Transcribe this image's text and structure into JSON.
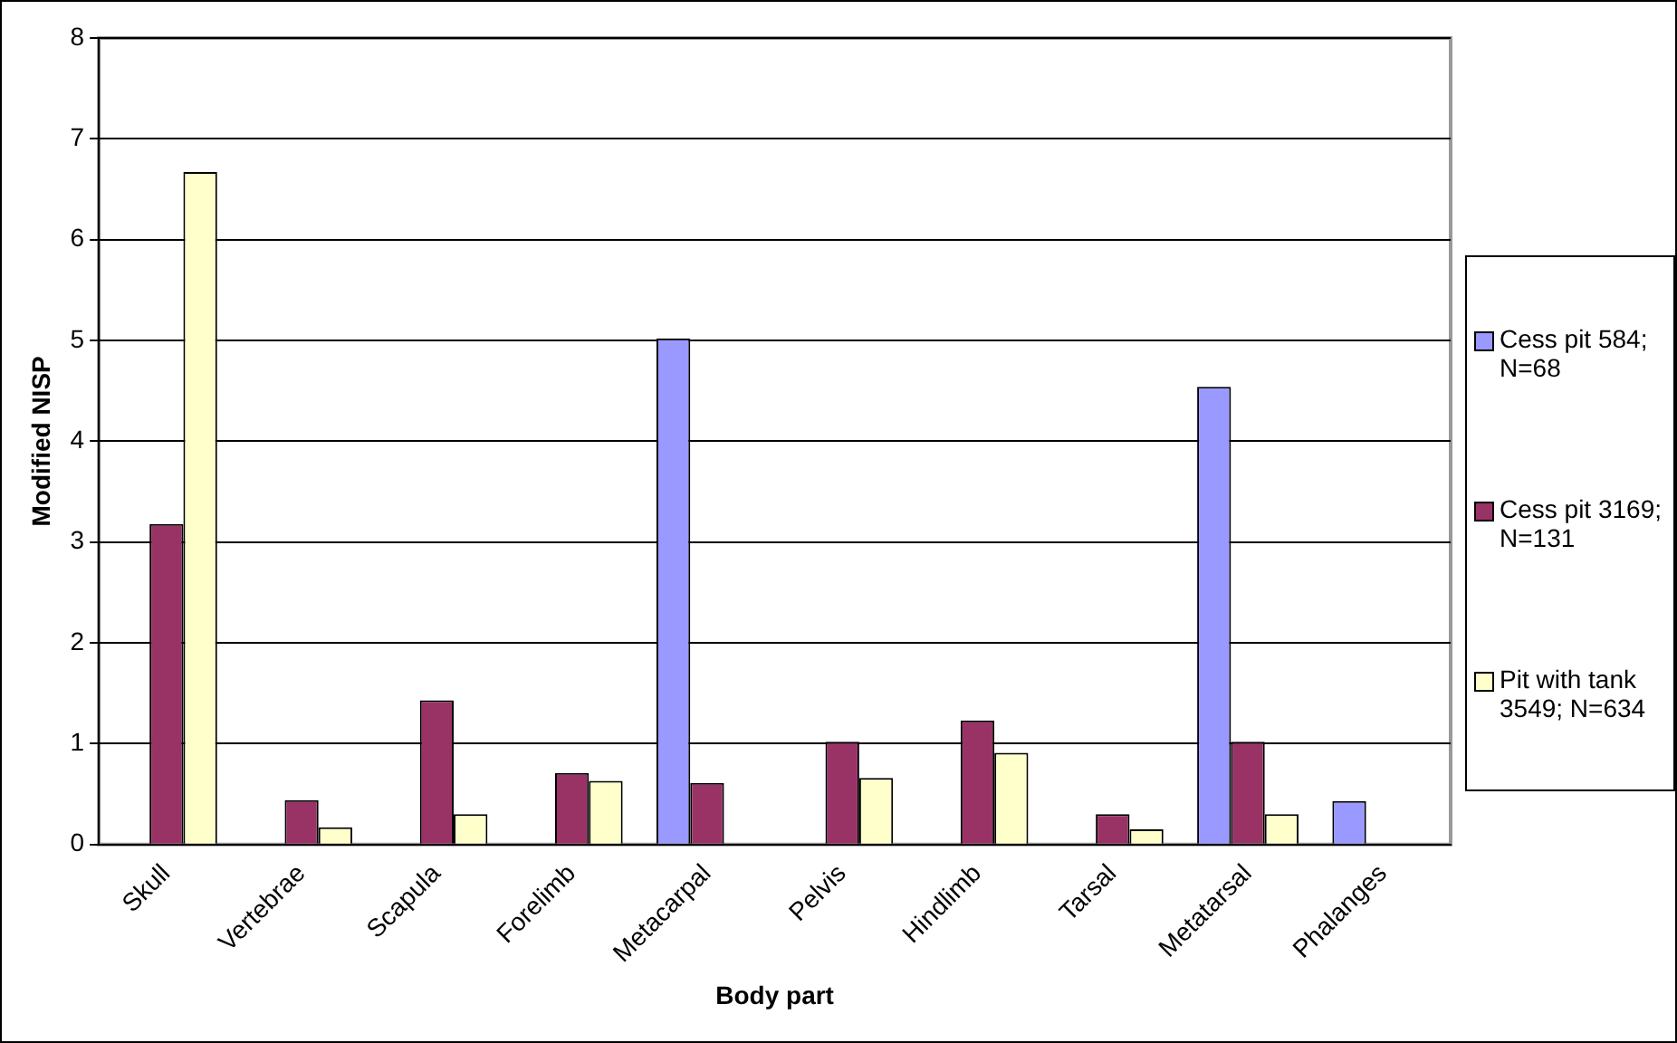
{
  "chart_data": {
    "type": "bar",
    "xlabel": "Body part",
    "ylabel": "Modified NISP",
    "categories": [
      "Skull",
      "Vertebrae",
      "Scapula",
      "Forelimb",
      "Metacarpal",
      "Pelvis",
      "Hindlimb",
      "Tarsal",
      "Metatarsal",
      "Phalanges"
    ],
    "series": [
      {
        "name": "Cess pit 584; N=68",
        "color": "#9999ff",
        "values": [
          0,
          0,
          0,
          0,
          5.02,
          0,
          0,
          0,
          4.54,
          0.43
        ]
      },
      {
        "name": "Cess pit 3169; N=131",
        "color": "#993366",
        "values": [
          3.18,
          0.44,
          1.43,
          0.71,
          0.61,
          1.02,
          1.23,
          0.3,
          1.02,
          null
        ]
      },
      {
        "name": "Pit with tank 3549; N=634",
        "color": "#ffffcc",
        "values": [
          6.67,
          0.17,
          0.3,
          0.63,
          0,
          0.66,
          0.91,
          0.15,
          0.3,
          null
        ]
      }
    ],
    "ylim": [
      0,
      8
    ],
    "yticks": [
      0,
      1,
      2,
      3,
      4,
      5,
      6,
      7,
      8
    ],
    "grid": "y",
    "legend": "right"
  }
}
